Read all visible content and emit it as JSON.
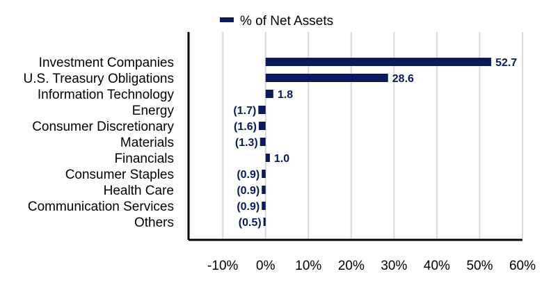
{
  "chart_data": {
    "type": "bar",
    "orientation": "horizontal",
    "categories": [
      "Investment Companies",
      "U.S. Treasury Obligations",
      "Information Technology",
      "Energy",
      "Consumer Discretionary",
      "Materials",
      "Financials",
      "Consumer Staples",
      "Health Care",
      "Communication Services",
      "Others"
    ],
    "series": [
      {
        "name": "% of Net Assets",
        "values": [
          52.7,
          28.6,
          1.8,
          -1.7,
          -1.6,
          -1.3,
          1.0,
          -0.9,
          -0.9,
          -0.9,
          -0.5
        ]
      }
    ],
    "data_labels": [
      "52.7",
      "28.6",
      "1.8",
      "(1.7)",
      "(1.6)",
      "(1.3)",
      "1.0",
      "(0.9)",
      "(0.9)",
      "(0.9)",
      "(0.5)"
    ],
    "x_ticks": [
      "-10%",
      "0%",
      "10%",
      "20%",
      "30%",
      "40%",
      "50%",
      "60%"
    ],
    "x_tick_values": [
      -10,
      0,
      10,
      20,
      30,
      40,
      50,
      60
    ],
    "xlim": [
      -18,
      60
    ],
    "grid": true,
    "legend_position": "top",
    "colors": {
      "bar": "#0a1a5c",
      "grid": "#d9d9d9",
      "axis": "#000000"
    }
  }
}
